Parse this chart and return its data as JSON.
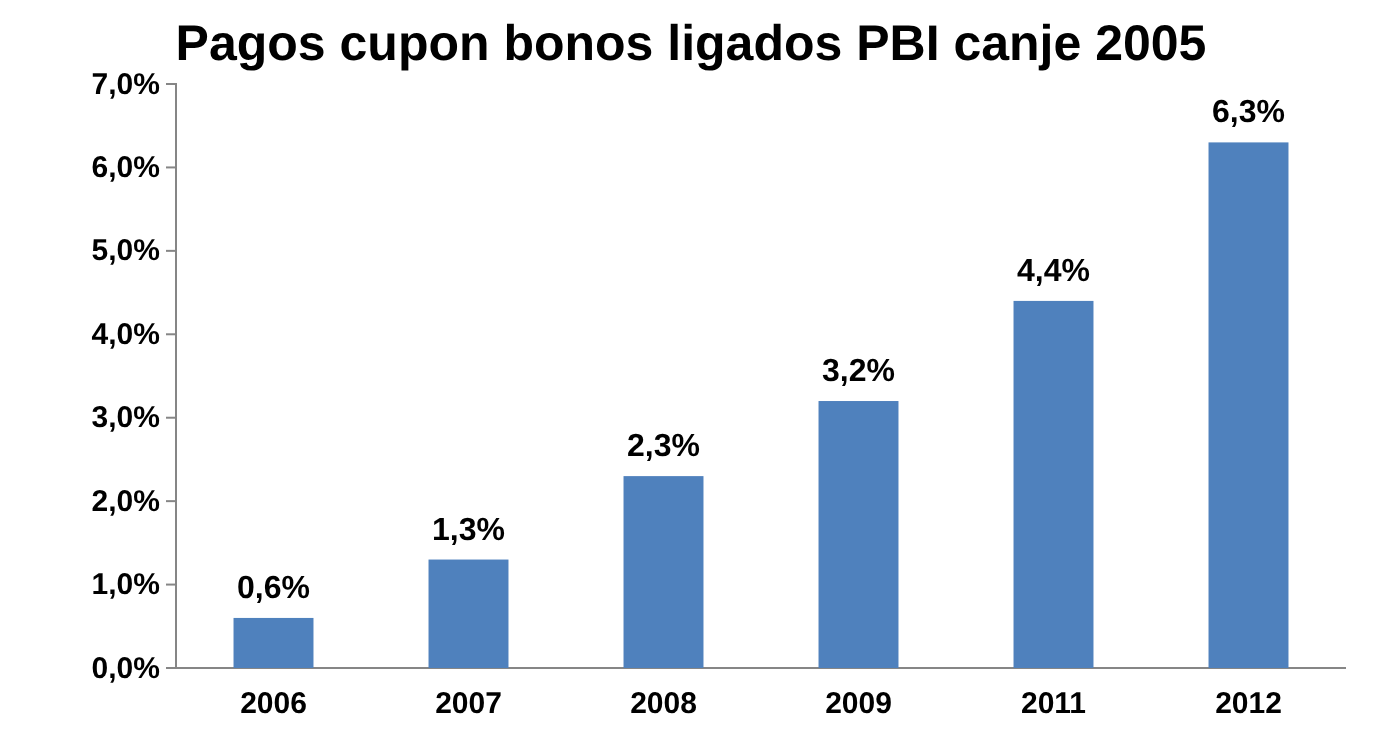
{
  "chart_data": {
    "type": "bar",
    "title": "Pagos cupon bonos ligados PBI canje 2005",
    "categories": [
      "2006",
      "2007",
      "2008",
      "2009",
      "2011",
      "2012"
    ],
    "values": [
      0.6,
      1.3,
      2.3,
      3.2,
      4.4,
      6.3
    ],
    "value_labels": [
      "0,6%",
      "1,3%",
      "2,3%",
      "3,2%",
      "4,4%",
      "6,3%"
    ],
    "color": "#4f81bd",
    "ylim": [
      0,
      7
    ],
    "yticks": [
      {
        "value": 0,
        "label": "0,0%"
      },
      {
        "value": 1,
        "label": "1,0%"
      },
      {
        "value": 2,
        "label": "2,0%"
      },
      {
        "value": 3,
        "label": "3,0%"
      },
      {
        "value": 4,
        "label": "4,0%"
      },
      {
        "value": 5,
        "label": "5,0%"
      },
      {
        "value": 6,
        "label": "6,0%"
      },
      {
        "value": 7,
        "label": "7,0%"
      }
    ],
    "grid": false
  }
}
